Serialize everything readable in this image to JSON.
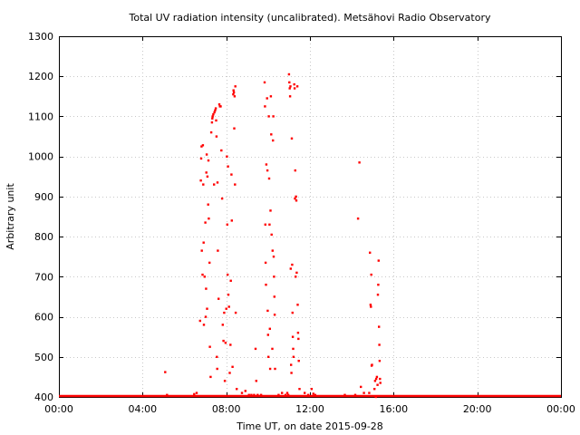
{
  "chart_data": {
    "type": "scatter",
    "title": "Total UV radiation intensity (uncalibrated). Metsähovi Radio Observatory",
    "xlabel": "Time UT, on date 2015-09-28",
    "ylabel": "Arbitrary unit",
    "xlim": [
      "00:00",
      "24:00"
    ],
    "ylim": [
      400,
      1300
    ],
    "x_ticks": [
      "00:00",
      "04:00",
      "08:00",
      "12:00",
      "16:00",
      "20:00",
      "00:00"
    ],
    "y_ticks": [
      400,
      500,
      600,
      700,
      800,
      900,
      1000,
      1100,
      1200,
      1300
    ],
    "grid": true,
    "point_color": "#ff0000",
    "baseline_value": 400,
    "series": [
      {
        "points": [
          [
            "05:05",
            462
          ],
          [
            "05:10",
            405
          ],
          [
            "06:28",
            407
          ],
          [
            "06:35",
            410
          ],
          [
            "06:45",
            590
          ],
          [
            "06:47",
            940
          ],
          [
            "06:48",
            995
          ],
          [
            "06:49",
            1025
          ],
          [
            "06:50",
            765
          ],
          [
            "06:52",
            705
          ],
          [
            "06:53",
            1028
          ],
          [
            "06:54",
            930
          ],
          [
            "06:55",
            785
          ],
          [
            "06:56",
            580
          ],
          [
            "06:58",
            700
          ],
          [
            "07:00",
            835
          ],
          [
            "07:01",
            600
          ],
          [
            "07:02",
            670
          ],
          [
            "07:03",
            960
          ],
          [
            "07:04",
            1005
          ],
          [
            "07:05",
            620
          ],
          [
            "07:06",
            950
          ],
          [
            "07:08",
            880
          ],
          [
            "07:09",
            990
          ],
          [
            "07:10",
            845
          ],
          [
            "07:12",
            735
          ],
          [
            "07:13",
            525
          ],
          [
            "07:15",
            450
          ],
          [
            "07:17",
            1060
          ],
          [
            "07:19",
            1085
          ],
          [
            "07:20",
            1095
          ],
          [
            "07:21",
            1100
          ],
          [
            "07:23",
            1105
          ],
          [
            "07:25",
            930
          ],
          [
            "07:26",
            1110
          ],
          [
            "07:28",
            1115
          ],
          [
            "07:30",
            1120
          ],
          [
            "07:31",
            1090
          ],
          [
            "07:32",
            1050
          ],
          [
            "07:33",
            500
          ],
          [
            "07:34",
            470
          ],
          [
            "07:35",
            935
          ],
          [
            "07:36",
            765
          ],
          [
            "07:38",
            645
          ],
          [
            "07:40",
            1130
          ],
          [
            "07:42",
            1125
          ],
          [
            "07:44",
            1125
          ],
          [
            "07:46",
            1015
          ],
          [
            "07:48",
            895
          ],
          [
            "07:50",
            580
          ],
          [
            "07:52",
            540
          ],
          [
            "07:54",
            610
          ],
          [
            "07:56",
            440
          ],
          [
            "07:58",
            535
          ],
          [
            "08:00",
            620
          ],
          [
            "08:02",
            1000
          ],
          [
            "08:03",
            830
          ],
          [
            "08:04",
            705
          ],
          [
            "08:05",
            975
          ],
          [
            "08:06",
            655
          ],
          [
            "08:08",
            625
          ],
          [
            "08:10",
            460
          ],
          [
            "08:12",
            530
          ],
          [
            "08:13",
            690
          ],
          [
            "08:15",
            955
          ],
          [
            "08:16",
            840
          ],
          [
            "08:18",
            475
          ],
          [
            "08:20",
            1155
          ],
          [
            "08:21",
            1165
          ],
          [
            "08:22",
            1160
          ],
          [
            "08:23",
            1070
          ],
          [
            "08:24",
            1150
          ],
          [
            "08:25",
            930
          ],
          [
            "08:26",
            1175
          ],
          [
            "08:27",
            610
          ],
          [
            "08:30",
            420
          ],
          [
            "08:45",
            410
          ],
          [
            "08:55",
            415
          ],
          [
            "09:05",
            405
          ],
          [
            "09:12",
            405
          ],
          [
            "09:20",
            405
          ],
          [
            "09:24",
            520
          ],
          [
            "09:26",
            440
          ],
          [
            "09:30",
            405
          ],
          [
            "09:40",
            405
          ],
          [
            "09:50",
            1185
          ],
          [
            "09:51",
            1125
          ],
          [
            "09:52",
            830
          ],
          [
            "09:53",
            735
          ],
          [
            "09:54",
            680
          ],
          [
            "09:55",
            980
          ],
          [
            "09:57",
            1145
          ],
          [
            "09:58",
            965
          ],
          [
            "09:59",
            615
          ],
          [
            "10:00",
            555
          ],
          [
            "10:01",
            500
          ],
          [
            "10:02",
            1100
          ],
          [
            "10:03",
            945
          ],
          [
            "10:04",
            830
          ],
          [
            "10:05",
            570
          ],
          [
            "10:06",
            470
          ],
          [
            "10:07",
            865
          ],
          [
            "10:08",
            1150
          ],
          [
            "10:09",
            1055
          ],
          [
            "10:10",
            805
          ],
          [
            "10:12",
            520
          ],
          [
            "10:13",
            765
          ],
          [
            "10:14",
            1040
          ],
          [
            "10:15",
            1100
          ],
          [
            "10:16",
            750
          ],
          [
            "10:17",
            700
          ],
          [
            "10:18",
            650
          ],
          [
            "10:19",
            605
          ],
          [
            "10:20",
            470
          ],
          [
            "10:30",
            405
          ],
          [
            "10:40",
            410
          ],
          [
            "10:50",
            405
          ],
          [
            "10:55",
            410
          ],
          [
            "10:58",
            405
          ],
          [
            "11:00",
            1205
          ],
          [
            "11:01",
            1185
          ],
          [
            "11:02",
            1170
          ],
          [
            "11:03",
            1150
          ],
          [
            "11:04",
            1175
          ],
          [
            "11:05",
            720
          ],
          [
            "11:06",
            480
          ],
          [
            "11:07",
            460
          ],
          [
            "11:08",
            1045
          ],
          [
            "11:09",
            730
          ],
          [
            "11:10",
            610
          ],
          [
            "11:11",
            550
          ],
          [
            "11:12",
            520
          ],
          [
            "11:13",
            500
          ],
          [
            "11:15",
            1180
          ],
          [
            "11:16",
            1170
          ],
          [
            "11:17",
            895
          ],
          [
            "11:18",
            965
          ],
          [
            "11:19",
            700
          ],
          [
            "11:20",
            900
          ],
          [
            "11:21",
            890
          ],
          [
            "11:22",
            710
          ],
          [
            "11:24",
            1175
          ],
          [
            "11:25",
            630
          ],
          [
            "11:26",
            560
          ],
          [
            "11:27",
            545
          ],
          [
            "11:28",
            490
          ],
          [
            "11:30",
            420
          ],
          [
            "11:45",
            410
          ],
          [
            "11:55",
            405
          ],
          [
            "12:05",
            420
          ],
          [
            "12:10",
            408
          ],
          [
            "12:15",
            405
          ],
          [
            "13:40",
            405
          ],
          [
            "14:10",
            405
          ],
          [
            "14:18",
            845
          ],
          [
            "14:22",
            985
          ],
          [
            "14:26",
            425
          ],
          [
            "14:35",
            410
          ],
          [
            "14:50",
            410
          ],
          [
            "14:52",
            760
          ],
          [
            "14:54",
            630
          ],
          [
            "14:55",
            625
          ],
          [
            "14:56",
            705
          ],
          [
            "14:57",
            478
          ],
          [
            "14:58",
            480
          ],
          [
            "15:05",
            420
          ],
          [
            "15:07",
            440
          ],
          [
            "15:09",
            400
          ],
          [
            "15:10",
            445
          ],
          [
            "15:12",
            450
          ],
          [
            "15:14",
            430
          ],
          [
            "15:15",
            655
          ],
          [
            "15:16",
            680
          ],
          [
            "15:17",
            740
          ],
          [
            "15:18",
            575
          ],
          [
            "15:19",
            530
          ],
          [
            "15:20",
            490
          ],
          [
            "15:21",
            445
          ],
          [
            "15:22",
            435
          ]
        ]
      }
    ]
  }
}
